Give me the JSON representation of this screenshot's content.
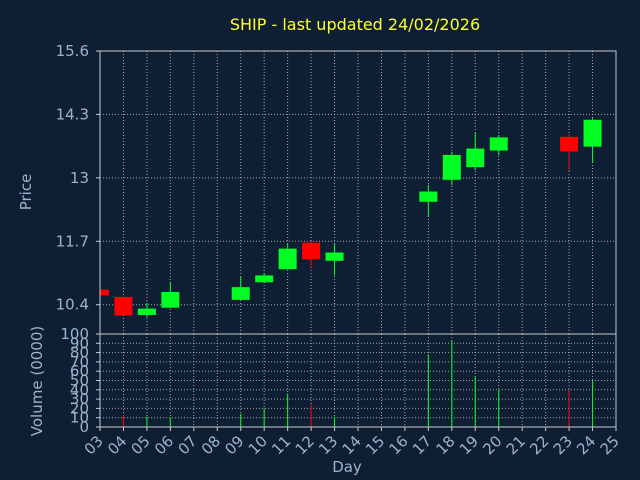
{
  "chart_data": {
    "type": "candlestick",
    "title": "SHIP - last updated 24/02/2026",
    "xlabel": "Day",
    "ylabel_price": "Price",
    "ylabel_volume": "Volume (0000)",
    "x_ticks": [
      "03",
      "04",
      "05",
      "06",
      "07",
      "08",
      "09",
      "10",
      "11",
      "12",
      "13",
      "14",
      "15",
      "16",
      "17",
      "18",
      "19",
      "20",
      "21",
      "22",
      "23",
      "24",
      "25"
    ],
    "price_ticks": [
      "10.4",
      "11.7",
      "13",
      "14.3",
      "15.6"
    ],
    "price_tick_values": [
      10.4,
      11.7,
      13.0,
      14.3,
      15.6
    ],
    "price_range": [
      9.8,
      15.6
    ],
    "volume_ticks": [
      "0",
      "10",
      "20",
      "30",
      "40",
      "50",
      "60",
      "70",
      "80",
      "90",
      "100"
    ],
    "volume_range": [
      0,
      100
    ],
    "x_range": [
      3,
      25
    ],
    "colors": {
      "up": "#00ff22",
      "down": "#ff0000",
      "grid": "#c8c8c8",
      "background": "#0f1f33",
      "axis": "#c8c8c8"
    },
    "candles": [
      {
        "day": 3,
        "open": 10.71,
        "high": 10.71,
        "low": 10.59,
        "close": 10.59,
        "volume": 0
      },
      {
        "day": 4,
        "open": 10.56,
        "high": 10.56,
        "low": 10.18,
        "close": 10.18,
        "volume": 13
      },
      {
        "day": 5,
        "open": 10.19,
        "high": 10.44,
        "low": 10.14,
        "close": 10.32,
        "volume": 11
      },
      {
        "day": 6,
        "open": 10.34,
        "high": 10.87,
        "low": 10.33,
        "close": 10.66,
        "volume": 10
      },
      {
        "day": 9,
        "open": 10.5,
        "high": 10.98,
        "low": 10.49,
        "close": 10.76,
        "volume": 14
      },
      {
        "day": 10,
        "open": 10.86,
        "high": 11.05,
        "low": 10.85,
        "close": 11.0,
        "volume": 20
      },
      {
        "day": 11,
        "open": 11.13,
        "high": 11.65,
        "low": 11.12,
        "close": 11.55,
        "volume": 36
      },
      {
        "day": 12,
        "open": 11.67,
        "high": 11.7,
        "low": 11.16,
        "close": 11.33,
        "volume": 24
      },
      {
        "day": 13,
        "open": 11.3,
        "high": 11.65,
        "low": 11.0,
        "close": 11.47,
        "volume": 11
      },
      {
        "day": 17,
        "open": 12.51,
        "high": 12.86,
        "low": 12.21,
        "close": 12.72,
        "volume": 78
      },
      {
        "day": 18,
        "open": 12.96,
        "high": 13.53,
        "low": 12.85,
        "close": 13.47,
        "volume": 93
      },
      {
        "day": 19,
        "open": 13.22,
        "high": 13.92,
        "low": 13.16,
        "close": 13.6,
        "volume": 54
      },
      {
        "day": 20,
        "open": 13.56,
        "high": 13.87,
        "low": 13.46,
        "close": 13.83,
        "volume": 40
      },
      {
        "day": 23,
        "open": 13.84,
        "high": 13.9,
        "low": 13.14,
        "close": 13.54,
        "volume": 40
      },
      {
        "day": 24,
        "open": 13.64,
        "high": 14.22,
        "low": 13.32,
        "close": 14.19,
        "volume": 50
      }
    ]
  }
}
